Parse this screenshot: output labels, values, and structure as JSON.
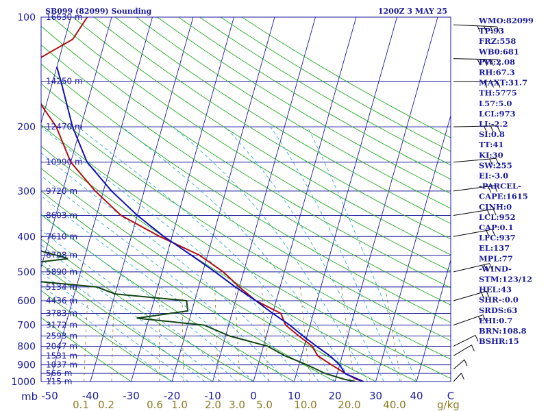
{
  "chart_data": {
    "type": "line",
    "title": "SB099 (82099) Sounding",
    "time_label": "1200Z  3 MAY 25",
    "x_unit": "mb",
    "y_unit": "g/kg",
    "pressure_levels": [
      100,
      200,
      300,
      400,
      500,
      600,
      700,
      800,
      900,
      1000
    ],
    "pressure_tick_labels": [
      "100",
      "200",
      "300",
      "400",
      "500",
      "600",
      "700",
      "800",
      "900",
      "1000"
    ],
    "temperature_ticks": [
      -50,
      -40,
      -30,
      -20,
      -10,
      0,
      10,
      20,
      30,
      40
    ],
    "temperature_tick_labels": [
      "-50",
      "-40",
      "-30",
      "-20",
      "-10",
      "0",
      "10",
      "20",
      "30",
      "40"
    ],
    "temperature_tick_last": "C",
    "mixing_ratio_labels": [
      "0.1",
      "0.2",
      "0.6",
      "1.0",
      "2.0",
      "3.0",
      "5.0",
      "10.0",
      "20.0",
      "40.0"
    ],
    "height_levels": [
      {
        "p": 100,
        "label": "16630 m"
      },
      {
        "p": 150,
        "label": "14250 m"
      },
      {
        "p": 200,
        "label": "12470 m"
      },
      {
        "p": 250,
        "label": "10990 m"
      },
      {
        "p": 300,
        "label": "9720 m"
      },
      {
        "p": 350,
        "label": "8603 m"
      },
      {
        "p": 400,
        "label": "7610 m"
      },
      {
        "p": 450,
        "label": "6708 m"
      },
      {
        "p": 500,
        "label": "5890 m"
      },
      {
        "p": 550,
        "label": "5134 m"
      },
      {
        "p": 600,
        "label": "4436 m"
      },
      {
        "p": 650,
        "label": "3783 m"
      },
      {
        "p": 700,
        "label": "3172 m"
      },
      {
        "p": 750,
        "label": "2593 m"
      },
      {
        "p": 800,
        "label": "2047 m"
      },
      {
        "p": 850,
        "label": "1531 m"
      },
      {
        "p": 900,
        "label": "1037 m"
      },
      {
        "p": 950,
        "label": "566 m"
      },
      {
        "p": 1000,
        "label": "115 m"
      }
    ],
    "series": [
      {
        "kind": "temperature",
        "color": "#b01010",
        "points": [
          [
            100,
            -66
          ],
          [
            115,
            -68
          ],
          [
            130,
            -75
          ],
          [
            150,
            -75
          ],
          [
            175,
            -71
          ],
          [
            200,
            -66
          ],
          [
            250,
            -60
          ],
          [
            300,
            -52
          ],
          [
            350,
            -44
          ],
          [
            400,
            -33
          ],
          [
            450,
            -22
          ],
          [
            500,
            -15
          ],
          [
            550,
            -10
          ],
          [
            600,
            -5
          ],
          [
            650,
            2
          ],
          [
            700,
            4
          ],
          [
            750,
            8
          ],
          [
            800,
            12
          ],
          [
            850,
            14
          ],
          [
            900,
            18
          ],
          [
            950,
            22
          ],
          [
            985,
            25
          ],
          [
            1000,
            27
          ]
        ]
      },
      {
        "kind": "dewpoint",
        "color": "#114411",
        "points": [
          [
            100,
            -79
          ],
          [
            130,
            -84
          ],
          [
            150,
            -83
          ],
          [
            165,
            -78
          ],
          [
            180,
            -82
          ],
          [
            200,
            -80
          ],
          [
            230,
            -72
          ],
          [
            250,
            -78
          ],
          [
            280,
            -73
          ],
          [
            300,
            -88
          ],
          [
            320,
            -82
          ],
          [
            340,
            -89
          ],
          [
            370,
            -77
          ],
          [
            400,
            -62
          ],
          [
            430,
            -64
          ],
          [
            460,
            -54
          ],
          [
            490,
            -74
          ],
          [
            520,
            -69
          ],
          [
            550,
            -45
          ],
          [
            575,
            -40
          ],
          [
            600,
            -22
          ],
          [
            640,
            -21
          ],
          [
            670,
            -33
          ],
          [
            700,
            -16
          ],
          [
            750,
            -9
          ],
          [
            800,
            1
          ],
          [
            850,
            6
          ],
          [
            900,
            12
          ],
          [
            950,
            17
          ],
          [
            985,
            22
          ],
          [
            1000,
            25
          ]
        ]
      },
      {
        "kind": "parcel",
        "color": "#1010b0",
        "points": [
          [
            1000,
            27
          ],
          [
            970,
            24
          ],
          [
            952,
            22
          ],
          [
            900,
            20
          ],
          [
            850,
            17
          ],
          [
            800,
            13
          ],
          [
            750,
            9
          ],
          [
            700,
            5
          ],
          [
            650,
            0
          ],
          [
            600,
            -5
          ],
          [
            550,
            -11
          ],
          [
            500,
            -17
          ],
          [
            450,
            -24
          ],
          [
            400,
            -32
          ],
          [
            350,
            -40
          ],
          [
            300,
            -48
          ],
          [
            250,
            -56
          ],
          [
            200,
            -62
          ],
          [
            150,
            -68
          ],
          [
            137,
            -70
          ]
        ]
      }
    ],
    "wind_barbs": [
      {
        "p": 105,
        "dir": 280,
        "spd": 40
      },
      {
        "p": 130,
        "dir": 275,
        "spd": 35
      },
      {
        "p": 150,
        "dir": 270,
        "spd": 30
      },
      {
        "p": 200,
        "dir": 265,
        "spd": 25
      },
      {
        "p": 250,
        "dir": 250,
        "spd": 20
      },
      {
        "p": 300,
        "dir": 240,
        "spd": 20
      },
      {
        "p": 350,
        "dir": 235,
        "spd": 15
      },
      {
        "p": 400,
        "dir": 230,
        "spd": 15
      },
      {
        "p": 500,
        "dir": 220,
        "spd": 15
      },
      {
        "p": 600,
        "dir": 210,
        "spd": 15
      },
      {
        "p": 700,
        "dir": 200,
        "spd": 15
      },
      {
        "p": 800,
        "dir": 180,
        "spd": 10
      },
      {
        "p": 850,
        "dir": 170,
        "spd": 10
      },
      {
        "p": 925,
        "dir": 150,
        "spd": 10
      },
      {
        "p": 1000,
        "dir": 140,
        "spd": 10
      }
    ],
    "indices": [
      "WMO:82099",
      "TP:93",
      "FRZ:558",
      "WB0:681",
      "PW:2.08",
      "RH:67.3",
      "MAXT:31.7",
      "TH:5775",
      "L57:5.0",
      "LCL:973",
      "LI:-2.2",
      "SI:0.8",
      "TT:41",
      "KI:30",
      "SW:255",
      "EI:-3.0",
      "-PARCEL-",
      "CAPE:1615",
      "CINH:0",
      "LCL:952",
      "CAP:0.1",
      "LFC:937",
      "EL:137",
      "MPL:77",
      "-WIND-",
      "STM:123/12",
      "HEL:43",
      "SHR-:0.0",
      "SRDS:63",
      "EHI:0.7",
      "BRN:108.8",
      "BSHR:15"
    ],
    "colors": {
      "frame": "#1a1a9e",
      "isotherm": "#1a1a9e",
      "dry_adiabat": "#22aa22",
      "moist_adiabat": "#33aacc",
      "mixing_ratio": "#8a7a20"
    }
  }
}
